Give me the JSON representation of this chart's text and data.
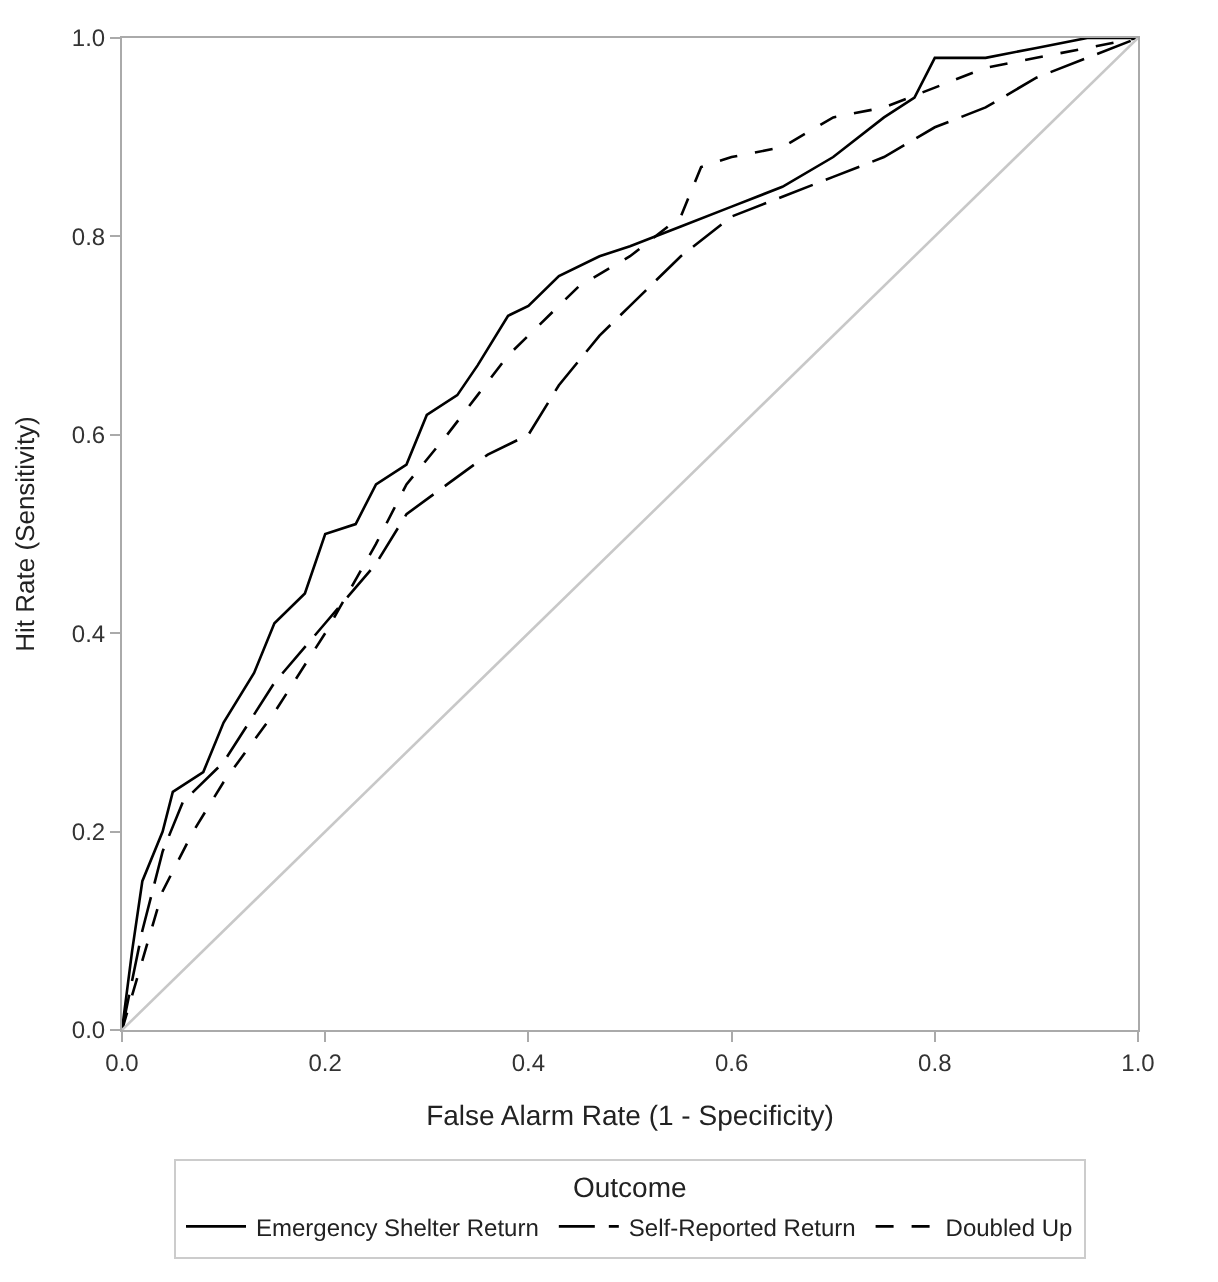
{
  "chart_data": {
    "type": "line",
    "xlabel": "False Alarm Rate (1 - Specificity)",
    "ylabel": "Hit Rate (Sensitivity)",
    "legend_title": "Outcome",
    "legend": "bottom",
    "marker": "none",
    "xlim": [
      0,
      1
    ],
    "ylim": [
      0,
      1
    ],
    "xticks": [
      {
        "value": 0,
        "label": "0.0"
      },
      0.2,
      0.4,
      0.6,
      0.8,
      {
        "value": 1,
        "label": "1.0"
      }
    ],
    "yticks": [
      {
        "value": 0,
        "label": "0.0"
      },
      0.2,
      0.4,
      0.6,
      0.8,
      {
        "value": 1,
        "label": "1.0"
      }
    ],
    "series": [
      {
        "name": "Emergency Shelter Return",
        "color": "#000000",
        "line_style": "solid",
        "x": [
          0,
          0.01,
          0.02,
          0.04,
          0.05,
          0.08,
          0.1,
          0.13,
          0.15,
          0.18,
          0.2,
          0.23,
          0.25,
          0.28,
          0.3,
          0.33,
          0.35,
          0.38,
          0.4,
          0.43,
          0.47,
          0.5,
          0.55,
          0.6,
          0.65,
          0.7,
          0.75,
          0.78,
          0.8,
          0.85,
          0.9,
          0.95,
          1
        ],
        "values": [
          0,
          0.08,
          0.15,
          0.2,
          0.24,
          0.26,
          0.31,
          0.36,
          0.41,
          0.44,
          0.5,
          0.51,
          0.55,
          0.57,
          0.62,
          0.64,
          0.67,
          0.72,
          0.73,
          0.76,
          0.78,
          0.79,
          0.81,
          0.83,
          0.85,
          0.88,
          0.92,
          0.94,
          0.98,
          0.98,
          0.99,
          1,
          1
        ]
      },
      {
        "name": "Self-Reported Return",
        "color": "#000000",
        "line_style": "longdash",
        "x": [
          0,
          0.02,
          0.04,
          0.06,
          0.1,
          0.15,
          0.2,
          0.25,
          0.28,
          0.32,
          0.36,
          0.4,
          0.43,
          0.47,
          0.5,
          0.55,
          0.6,
          0.65,
          0.7,
          0.75,
          0.8,
          0.85,
          0.9,
          0.95,
          1
        ],
        "values": [
          0,
          0.1,
          0.18,
          0.23,
          0.27,
          0.35,
          0.41,
          0.47,
          0.52,
          0.55,
          0.58,
          0.6,
          0.65,
          0.7,
          0.73,
          0.78,
          0.82,
          0.84,
          0.86,
          0.88,
          0.91,
          0.93,
          0.96,
          0.98,
          1
        ]
      },
      {
        "name": "Doubled Up",
        "color": "#000000",
        "line_style": "dashed",
        "x": [
          0,
          0.02,
          0.04,
          0.07,
          0.1,
          0.15,
          0.2,
          0.25,
          0.28,
          0.32,
          0.35,
          0.38,
          0.42,
          0.45,
          0.5,
          0.55,
          0.57,
          0.6,
          0.65,
          0.7,
          0.75,
          0.8,
          0.85,
          0.9,
          0.95,
          1
        ],
        "values": [
          0,
          0.07,
          0.14,
          0.2,
          0.25,
          0.32,
          0.4,
          0.49,
          0.55,
          0.6,
          0.64,
          0.68,
          0.72,
          0.75,
          0.78,
          0.82,
          0.87,
          0.88,
          0.89,
          0.92,
          0.93,
          0.95,
          0.97,
          0.98,
          0.99,
          1
        ]
      },
      {
        "color": "#c8c8c8",
        "line_style": "solid",
        "x": [
          0,
          1
        ],
        "values": [
          0,
          1
        ]
      }
    ]
  }
}
